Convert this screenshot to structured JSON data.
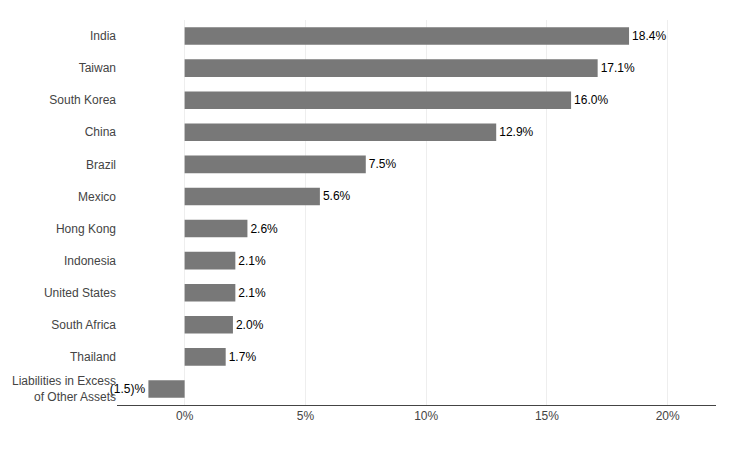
{
  "chart_data": {
    "type": "bar",
    "orientation": "horizontal",
    "categories": [
      "India",
      "Taiwan",
      "South Korea",
      "China",
      "Brazil",
      "Mexico",
      "Hong Kong",
      "Indonesia",
      "United States",
      "South Africa",
      "Thailand",
      "Liabilities in Excess\nof Other Assets"
    ],
    "values": [
      18.4,
      17.1,
      16.0,
      12.9,
      7.5,
      5.6,
      2.6,
      2.1,
      2.1,
      2.0,
      1.7,
      -1.5
    ],
    "value_labels": [
      "18.4%",
      "17.1%",
      "16.0%",
      "12.9%",
      "7.5%",
      "5.6%",
      "2.6%",
      "2.1%",
      "2.1%",
      "2.0%",
      "1.7%",
      "(1.5)%"
    ],
    "data_labels": true,
    "color": "#787878",
    "xlim": [
      -2.8,
      22.0
    ],
    "xticks": [
      {
        "value": 0,
        "label": "0%"
      },
      {
        "value": 5,
        "label": "5%"
      },
      {
        "value": 10,
        "label": "10%"
      },
      {
        "value": 15,
        "label": "15%"
      },
      {
        "value": 20,
        "label": "20%"
      }
    ],
    "grid": true
  }
}
